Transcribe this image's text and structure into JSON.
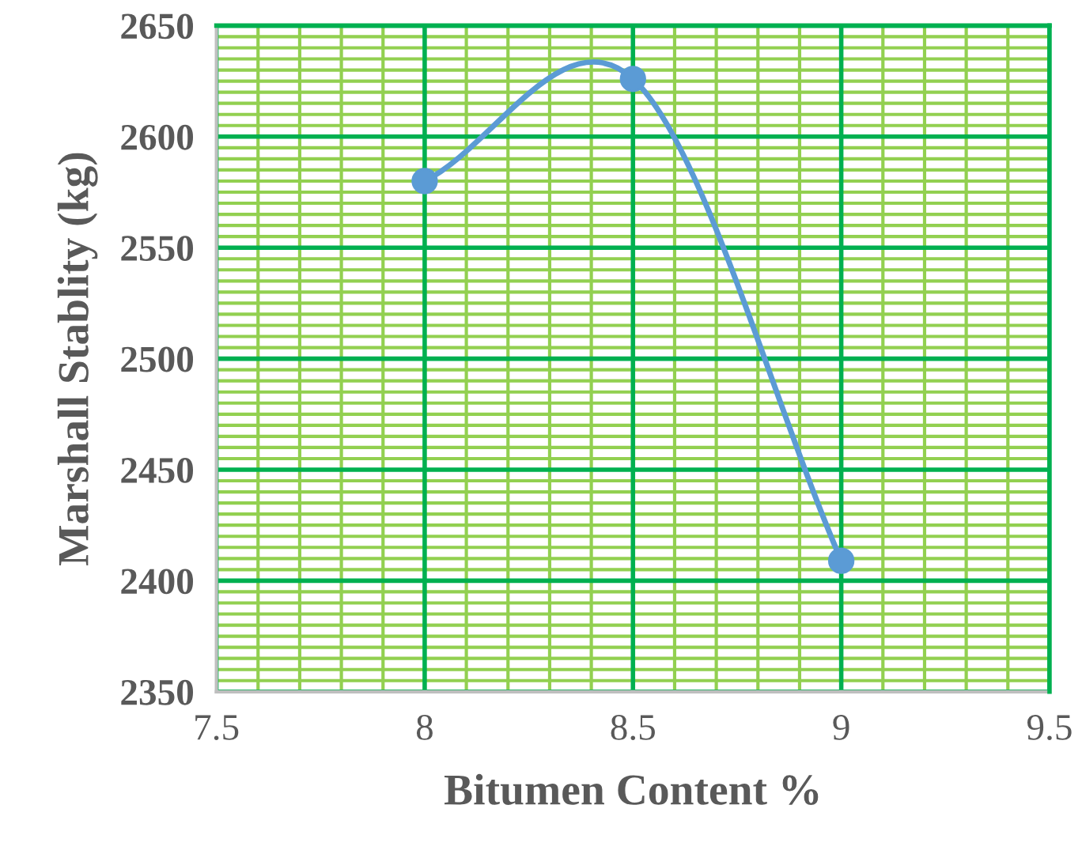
{
  "chart_data": {
    "type": "line",
    "xlabel": "Bitumen Content %",
    "ylabel": "Marshall Stablity (kg)",
    "x": [
      8,
      8.5,
      9
    ],
    "series": [
      {
        "color": "#5b9bd5",
        "values": [
          2580,
          2626,
          2409
        ]
      }
    ],
    "xlim": [
      7.5,
      9.5
    ],
    "xticks": [
      7.5,
      {
        "value": 7.6,
        "label": null
      },
      {
        "value": 7.7,
        "label": null
      },
      {
        "value": 7.8,
        "label": null
      },
      {
        "value": 7.9,
        "label": null
      },
      8,
      {
        "value": 8.1,
        "label": null
      },
      {
        "value": 8.2,
        "label": null
      },
      {
        "value": 8.3,
        "label": null
      },
      {
        "value": 8.4,
        "label": null
      },
      8.5,
      {
        "value": 8.6,
        "label": null
      },
      {
        "value": 8.7,
        "label": null
      },
      {
        "value": 8.8,
        "label": null
      },
      {
        "value": 8.9,
        "label": null
      },
      9,
      {
        "value": 9.1,
        "label": null
      },
      {
        "value": 9.2,
        "label": null
      },
      {
        "value": 9.3,
        "label": null
      },
      {
        "value": 9.4,
        "label": null
      },
      9.5
    ],
    "ylim": [
      2350,
      2650
    ],
    "yticks": [
      2350,
      {
        "value": 2355,
        "label": null
      },
      {
        "value": 2360,
        "label": null
      },
      {
        "value": 2365,
        "label": null
      },
      {
        "value": 2370,
        "label": null
      },
      {
        "value": 2375,
        "label": null
      },
      {
        "value": 2380,
        "label": null
      },
      {
        "value": 2385,
        "label": null
      },
      {
        "value": 2390,
        "label": null
      },
      {
        "value": 2395,
        "label": null
      },
      2400,
      {
        "value": 2405,
        "label": null
      },
      {
        "value": 2410,
        "label": null
      },
      {
        "value": 2415,
        "label": null
      },
      {
        "value": 2420,
        "label": null
      },
      {
        "value": 2425,
        "label": null
      },
      {
        "value": 2430,
        "label": null
      },
      {
        "value": 2435,
        "label": null
      },
      {
        "value": 2440,
        "label": null
      },
      {
        "value": 2445,
        "label": null
      },
      2450,
      {
        "value": 2455,
        "label": null
      },
      {
        "value": 2460,
        "label": null
      },
      {
        "value": 2465,
        "label": null
      },
      {
        "value": 2470,
        "label": null
      },
      {
        "value": 2475,
        "label": null
      },
      {
        "value": 2480,
        "label": null
      },
      {
        "value": 2485,
        "label": null
      },
      {
        "value": 2490,
        "label": null
      },
      {
        "value": 2495,
        "label": null
      },
      2500,
      {
        "value": 2505,
        "label": null
      },
      {
        "value": 2510,
        "label": null
      },
      {
        "value": 2515,
        "label": null
      },
      {
        "value": 2520,
        "label": null
      },
      {
        "value": 2525,
        "label": null
      },
      {
        "value": 2530,
        "label": null
      },
      {
        "value": 2535,
        "label": null
      },
      {
        "value": 2540,
        "label": null
      },
      {
        "value": 2545,
        "label": null
      },
      2550,
      {
        "value": 2555,
        "label": null
      },
      {
        "value": 2560,
        "label": null
      },
      {
        "value": 2565,
        "label": null
      },
      {
        "value": 2570,
        "label": null
      },
      {
        "value": 2575,
        "label": null
      },
      {
        "value": 2580,
        "label": null
      },
      {
        "value": 2585,
        "label": null
      },
      {
        "value": 2590,
        "label": null
      },
      {
        "value": 2595,
        "label": null
      },
      2600,
      {
        "value": 2605,
        "label": null
      },
      {
        "value": 2610,
        "label": null
      },
      {
        "value": 2615,
        "label": null
      },
      {
        "value": 2620,
        "label": null
      },
      {
        "value": 2625,
        "label": null
      },
      {
        "value": 2630,
        "label": null
      },
      {
        "value": 2635,
        "label": null
      },
      {
        "value": 2640,
        "label": null
      },
      {
        "value": 2645,
        "label": null
      },
      2650
    ],
    "grid": true,
    "marker": "circle",
    "line_style": "solid"
  }
}
